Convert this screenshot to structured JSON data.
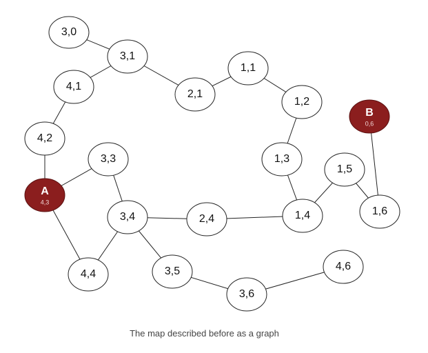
{
  "caption": "The map described before as a graph",
  "colors": {
    "special_node": "#8b1e1e",
    "special_text": "#ffffff",
    "node_fill": "#ffffff",
    "stroke": "#222222"
  },
  "nodes": [
    {
      "id": "3,0",
      "label": "3,0"
    },
    {
      "id": "3,1",
      "label": "3,1"
    },
    {
      "id": "4,1",
      "label": "4,1"
    },
    {
      "id": "2,1",
      "label": "2,1"
    },
    {
      "id": "1,1",
      "label": "1,1"
    },
    {
      "id": "1,2",
      "label": "1,2"
    },
    {
      "id": "B",
      "label": "B",
      "sublabel": "0,6",
      "special": true
    },
    {
      "id": "4,2",
      "label": "4,2"
    },
    {
      "id": "3,3",
      "label": "3,3"
    },
    {
      "id": "1,3",
      "label": "1,3"
    },
    {
      "id": "1,5",
      "label": "1,5"
    },
    {
      "id": "A",
      "label": "A",
      "sublabel": "4,3",
      "special": true
    },
    {
      "id": "3,4",
      "label": "3,4"
    },
    {
      "id": "2,4",
      "label": "2,4"
    },
    {
      "id": "1,4",
      "label": "1,4"
    },
    {
      "id": "1,6",
      "label": "1,6"
    },
    {
      "id": "4,4",
      "label": "4,4"
    },
    {
      "id": "3,5",
      "label": "3,5"
    },
    {
      "id": "4,6",
      "label": "4,6"
    },
    {
      "id": "3,6",
      "label": "3,6"
    }
  ],
  "edges": [
    [
      "3,0",
      "3,1"
    ],
    [
      "3,1",
      "4,1"
    ],
    [
      "3,1",
      "2,1"
    ],
    [
      "2,1",
      "1,1"
    ],
    [
      "1,1",
      "1,2"
    ],
    [
      "1,2",
      "1,3"
    ],
    [
      "1,3",
      "1,4"
    ],
    [
      "1,4",
      "1,5"
    ],
    [
      "1,5",
      "1,6"
    ],
    [
      "1,6",
      "B"
    ],
    [
      "4,1",
      "4,2"
    ],
    [
      "4,2",
      "A"
    ],
    [
      "A",
      "3,3"
    ],
    [
      "A",
      "4,4"
    ],
    [
      "3,3",
      "3,4"
    ],
    [
      "3,4",
      "4,4"
    ],
    [
      "3,4",
      "2,4"
    ],
    [
      "2,4",
      "1,4"
    ],
    [
      "3,4",
      "3,5"
    ],
    [
      "3,5",
      "3,6"
    ],
    [
      "3,6",
      "4,6"
    ]
  ]
}
